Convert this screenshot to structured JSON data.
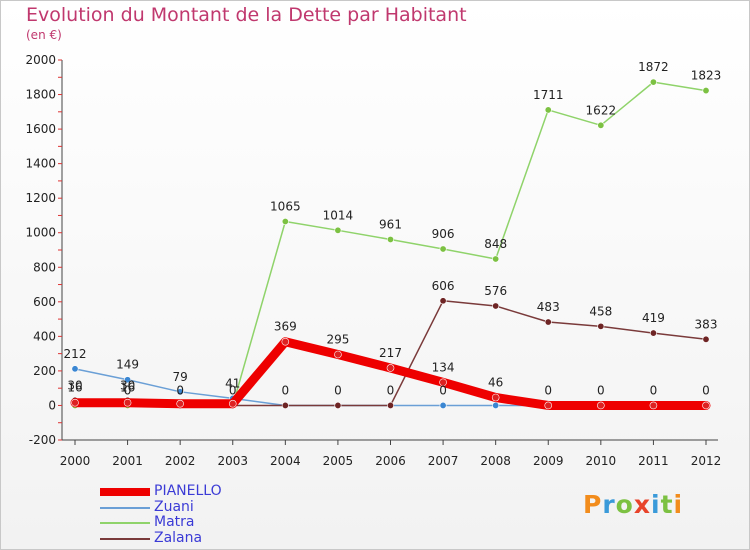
{
  "title": "Evolution du Montant de la Dette par Habitant",
  "unit": "(en €)",
  "logo": {
    "text": "Proxiti",
    "letter_colors": [
      "#f28c1c",
      "#3a9ad9",
      "#7cc142",
      "#e8432a",
      "#3a9ad9",
      "#7cc142",
      "#f28c1c"
    ]
  },
  "chart_data": {
    "type": "line",
    "x": [
      "2000",
      "2001",
      "2002",
      "2003",
      "2004",
      "2005",
      "2006",
      "2007",
      "2008",
      "2009",
      "2010",
      "2011",
      "2012"
    ],
    "ylim": [
      -200,
      2000
    ],
    "yticks": [
      -200,
      0,
      200,
      400,
      600,
      800,
      1000,
      1200,
      1400,
      1600,
      1800,
      2000
    ],
    "grid": false,
    "legend_position": "bottom-left",
    "series": [
      {
        "name": "PIANELLO",
        "color": "#ee0000",
        "marker": "#dd2222",
        "values": [
          16,
          16,
          10,
          10,
          369,
          295,
          217,
          134,
          46,
          0,
          0,
          0,
          0
        ],
        "labels": [
          "16",
          "16",
          "",
          "",
          "369",
          "295",
          "217",
          "134",
          "46",
          "0",
          "0",
          "0",
          "0"
        ]
      },
      {
        "name": "Zuani",
        "color": "#6a9fd6",
        "marker": "#3a86d2",
        "values": [
          212,
          149,
          79,
          41,
          0,
          0,
          0,
          0,
          0,
          0,
          0,
          0,
          0
        ],
        "labels": [
          "212",
          "149",
          "79",
          "41",
          "",
          "",
          "",
          "0",
          "",
          "",
          "",
          "",
          ""
        ]
      },
      {
        "name": "Matra",
        "color": "#8fd36a",
        "marker": "#7cc142",
        "values": [
          0,
          0,
          0,
          0,
          1065,
          1014,
          961,
          906,
          848,
          1711,
          1622,
          1872,
          1823
        ],
        "labels": [
          "",
          "0",
          "",
          "",
          "1065",
          "1014",
          "961",
          "906",
          "848",
          "1711",
          "1622",
          "1872",
          "1823"
        ]
      },
      {
        "name": "Zalana",
        "color": "#7a3a3a",
        "marker": "#6e2424",
        "values": [
          30,
          30,
          0,
          0,
          0,
          0,
          0,
          606,
          576,
          483,
          458,
          419,
          383
        ],
        "labels": [
          "30",
          "30",
          "0",
          "0",
          "0",
          "0",
          "0",
          "606",
          "576",
          "483",
          "458",
          "419",
          "383"
        ]
      }
    ]
  }
}
